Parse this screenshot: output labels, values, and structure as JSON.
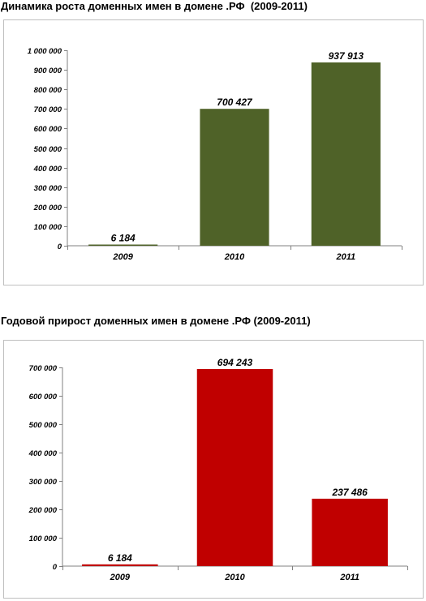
{
  "colors": {
    "chart1_bar": "#4f6228",
    "chart2_bar": "#c00000",
    "axis": "#808080",
    "text": "#000000"
  },
  "chart_data": [
    {
      "type": "bar",
      "title": "Динамика роста доменных имен в домене .РФ  (2009-2011)",
      "categories": [
        "2009",
        "2010",
        "2011"
      ],
      "values": [
        6184,
        700427,
        937913
      ],
      "data_labels": [
        "6 184",
        "700 427",
        "937 913"
      ],
      "ylim": [
        0,
        1000000
      ],
      "yticks": [
        0,
        100000,
        200000,
        300000,
        400000,
        500000,
        600000,
        700000,
        800000,
        900000,
        1000000
      ],
      "ytick_labels": [
        "0",
        "100 000",
        "200 000",
        "300 000",
        "400 000",
        "500 000",
        "600 000",
        "700 000",
        "800 000",
        "900 000",
        "1 000 000"
      ],
      "xlabel": "",
      "ylabel": "",
      "grid": false,
      "legend": "none",
      "color": "#4f6228"
    },
    {
      "type": "bar",
      "title": "Годовой прирост доменных имен в домене .РФ (2009-2011)",
      "categories": [
        "2009",
        "2010",
        "2011"
      ],
      "values": [
        6184,
        694243,
        237486
      ],
      "data_labels": [
        "6 184",
        "694 243",
        "237 486"
      ],
      "ylim": [
        0,
        700000
      ],
      "yticks": [
        0,
        100000,
        200000,
        300000,
        400000,
        500000,
        600000,
        700000
      ],
      "ytick_labels": [
        "0",
        "100 000",
        "200 000",
        "300 000",
        "400 000",
        "500 000",
        "600 000",
        "700 000"
      ],
      "xlabel": "",
      "ylabel": "",
      "grid": false,
      "legend": "none",
      "color": "#c00000"
    }
  ]
}
